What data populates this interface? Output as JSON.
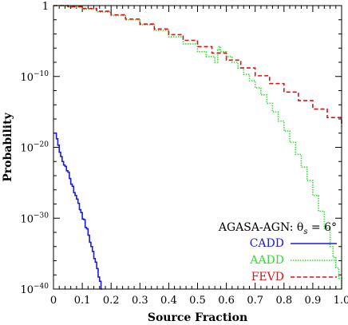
{
  "chart_data": {
    "type": "line",
    "xlabel": "Source Fraction",
    "ylabel": "Probability",
    "xlim": [
      0,
      1
    ],
    "ylim_log10": [
      -40,
      0
    ],
    "y_scale": "log",
    "x_ticks": [
      "0",
      "0.1",
      "0.2",
      "0.3",
      "0.4",
      "0.5",
      "0.6",
      "0.7",
      "0.8",
      "0.9",
      "1.0"
    ],
    "y_ticks": [
      {
        "label": "1",
        "exp": ""
      },
      {
        "label": "10",
        "exp": "−10"
      },
      {
        "label": "10",
        "exp": "−20"
      },
      {
        "label": "10",
        "exp": "−30"
      },
      {
        "label": "10",
        "exp": "−40"
      }
    ],
    "legend": {
      "placement": "bottom-right",
      "header": "AGASA-AGN: θ",
      "header_sub": "s",
      "header_suffix": " = 6°"
    },
    "series": [
      {
        "name": "CADD",
        "color": "#1a1adc",
        "dash": "solid",
        "x": [
          0.0,
          0.005,
          0.01,
          0.015,
          0.02,
          0.025,
          0.03,
          0.035,
          0.04,
          0.045,
          0.05,
          0.055,
          0.06,
          0.065,
          0.07,
          0.075,
          0.08,
          0.085,
          0.09,
          0.095,
          0.1,
          0.105,
          0.11,
          0.115,
          0.12,
          0.125,
          0.13,
          0.135,
          0.14,
          0.145,
          0.15,
          0.155,
          0.16,
          0.165,
          0.17
        ],
        "log10_y": [
          -18.0,
          -18.0,
          -18.8,
          -19.7,
          -20.7,
          -21.3,
          -22.0,
          -22.5,
          -22.7,
          -23.3,
          -23.5,
          -24.4,
          -25.2,
          -25.5,
          -26.4,
          -26.8,
          -27.3,
          -27.9,
          -28.8,
          -29.2,
          -30.1,
          -30.2,
          -31.3,
          -31.5,
          -32.4,
          -33.4,
          -34.0,
          -34.7,
          -35.7,
          -36.2,
          -37.1,
          -38.3,
          -38.9,
          -40.0,
          -40.0
        ]
      },
      {
        "name": "AADD",
        "color": "#33dd33",
        "dash": "dotted",
        "x": [
          0.0,
          0.05,
          0.1,
          0.15,
          0.2,
          0.25,
          0.3,
          0.35,
          0.4,
          0.45,
          0.5,
          0.53,
          0.56,
          0.57,
          0.575,
          0.58,
          0.6,
          0.62,
          0.64,
          0.66,
          0.68,
          0.7,
          0.72,
          0.74,
          0.76,
          0.78,
          0.8,
          0.82,
          0.84,
          0.86,
          0.88,
          0.9,
          0.92,
          0.94,
          0.96,
          0.97,
          0.98,
          0.99,
          1.0
        ],
        "log10_y": [
          0.0,
          -0.2,
          -0.5,
          -0.9,
          -1.4,
          -2.0,
          -2.7,
          -3.5,
          -4.4,
          -5.4,
          -6.5,
          -7.2,
          -8.0,
          -6.3,
          -5.8,
          -6.5,
          -7.2,
          -8.0,
          -8.8,
          -9.7,
          -10.6,
          -11.6,
          -12.6,
          -13.8,
          -15.0,
          -16.3,
          -17.7,
          -19.3,
          -21.0,
          -22.8,
          -24.7,
          -26.8,
          -29.0,
          -31.4,
          -34.0,
          -35.5,
          -37.0,
          -38.5,
          -40.0
        ]
      },
      {
        "name": "FEVD",
        "color": "#dd1111",
        "dash": "dashed",
        "x": [
          0.0,
          0.05,
          0.1,
          0.15,
          0.2,
          0.25,
          0.3,
          0.35,
          0.4,
          0.45,
          0.5,
          0.55,
          0.6,
          0.65,
          0.7,
          0.75,
          0.8,
          0.85,
          0.9,
          0.95,
          1.0
        ],
        "log10_y": [
          0.0,
          -0.15,
          -0.4,
          -0.8,
          -1.3,
          -1.9,
          -2.6,
          -3.3,
          -4.1,
          -4.9,
          -5.8,
          -6.7,
          -7.7,
          -8.8,
          -9.9,
          -11.0,
          -12.2,
          -13.4,
          -14.6,
          -15.8,
          -17.1
        ]
      }
    ]
  }
}
